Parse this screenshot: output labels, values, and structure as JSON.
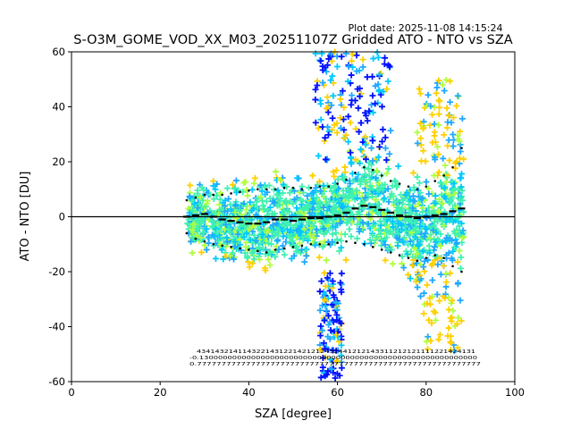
{
  "chart_data": {
    "type": "scatter",
    "title": "S-O3M_GOME_VOD_XX_M03_20251107Z Gridded ATO - NTO vs SZA",
    "plot_date": "Plot date: 2025-11-08 14:15:24",
    "xlabel": "SZA [degree]",
    "ylabel": "ATO - NTO [DU]",
    "xlim": [
      0,
      100
    ],
    "ylim": [
      -60,
      60
    ],
    "xticks": [
      0,
      20,
      40,
      60,
      80,
      100
    ],
    "yticks": [
      -60,
      -40,
      -20,
      0,
      20,
      40,
      60
    ],
    "zero_line": 0,
    "colors": {
      "cyan": "#00c8ff",
      "mint": "#40f0b0",
      "sky": "#20a8ff",
      "yellow": "#ffd000",
      "lime": "#b0ff40",
      "blue": "#0010ff",
      "axis": "#000000"
    },
    "series": [
      {
        "name": "median",
        "style": "black dashes",
        "x": [
          26,
          28,
          30,
          32,
          34,
          36,
          38,
          40,
          42,
          44,
          46,
          48,
          50,
          52,
          54,
          56,
          58,
          60,
          62,
          64,
          66,
          68,
          70,
          72,
          74,
          76,
          78,
          80,
          82,
          84,
          86,
          88
        ],
        "y": [
          0,
          0.5,
          1,
          0,
          -1,
          -1.5,
          -2,
          -2.5,
          -2.5,
          -2,
          -1,
          -1,
          -1.5,
          -1,
          -0.5,
          -0.5,
          0,
          0.5,
          1.5,
          3,
          4,
          3.5,
          2.5,
          1.5,
          0.5,
          0,
          -0.5,
          0,
          0.5,
          1,
          2,
          3
        ]
      },
      {
        "name": "upper",
        "style": "black dots",
        "x": [
          26,
          28,
          30,
          32,
          34,
          36,
          38,
          40,
          42,
          44,
          46,
          48,
          50,
          52,
          54,
          56,
          58,
          60,
          62,
          64,
          66,
          68,
          70,
          72,
          74,
          76,
          78,
          80,
          82,
          84,
          86,
          88
        ],
        "y": [
          6,
          7,
          8,
          8,
          8,
          8.5,
          9,
          9.5,
          10,
          10,
          10,
          10.5,
          10.5,
          10,
          10.5,
          11,
          11,
          12,
          13.5,
          16,
          18,
          17,
          15,
          13,
          12,
          11,
          10,
          11,
          13,
          15,
          18,
          25
        ]
      },
      {
        "name": "lower",
        "style": "black dots",
        "x": [
          26,
          28,
          30,
          32,
          34,
          36,
          38,
          40,
          42,
          44,
          46,
          48,
          50,
          52,
          54,
          56,
          58,
          60,
          62,
          64,
          66,
          68,
          70,
          72,
          74,
          76,
          78,
          80,
          82,
          84,
          86,
          88
        ],
        "y": [
          -6,
          -8,
          -9,
          -10,
          -10.5,
          -11,
          -11.5,
          -12,
          -12.5,
          -13,
          -12,
          -11.5,
          -11,
          -10.5,
          -10,
          -10,
          -10,
          -9.5,
          -9,
          -9.5,
          -10,
          -11,
          -12,
          -13,
          -14,
          -15,
          -16,
          -15,
          -14,
          -15,
          -18,
          -20
        ]
      }
    ],
    "annotations": {
      "row1": "4341432141143221431221421212432441212143311212121111221424131",
      "row2": "-0.13000000000000000000000000000000000000000000000000000000000",
      "row3": "0.7777777777777777777777777777777777777777777777777777777777"
    }
  }
}
